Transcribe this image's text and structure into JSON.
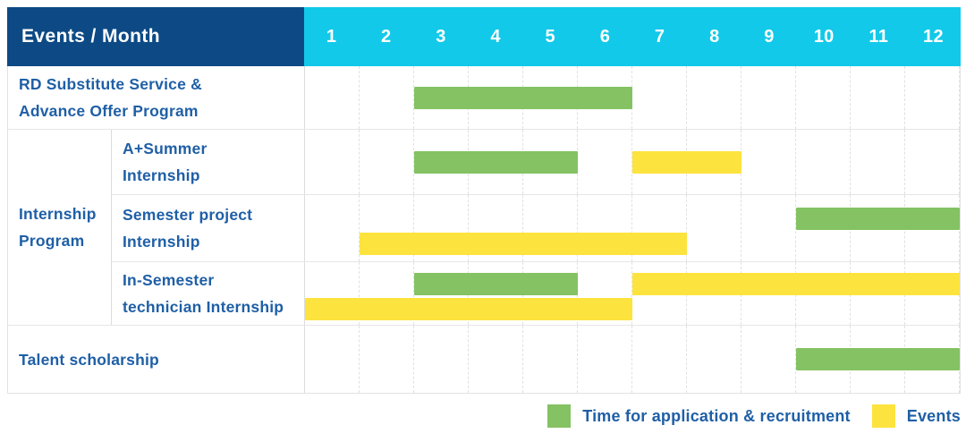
{
  "header": {
    "label": "Events / Month",
    "months": [
      "1",
      "2",
      "3",
      "4",
      "5",
      "6",
      "7",
      "8",
      "9",
      "10",
      "11",
      "12"
    ]
  },
  "legend": {
    "items": [
      {
        "label": "Time for application & recruitment",
        "color": "#84C263"
      },
      {
        "label": "Events",
        "color": "#FDE33E"
      }
    ]
  },
  "colors": {
    "header_bg": "#0D4A85",
    "months_bg": "#12C9E9",
    "header_text": "#FFFFFF",
    "label_text": "#1F5FA6",
    "green": "#84C263",
    "yellow": "#FDE33E"
  },
  "chart_data": {
    "type": "table",
    "subtype": "gantt-timeline",
    "title": "Events / Month",
    "x_axis": {
      "label": "Month",
      "ticks": [
        1,
        2,
        3,
        4,
        5,
        6,
        7,
        8,
        9,
        10,
        11,
        12
      ]
    },
    "legend_position": "bottom-right",
    "legend": [
      {
        "label": "Time for application & recruitment",
        "color": "#84C263"
      },
      {
        "label": "Events",
        "color": "#FDE33E"
      }
    ],
    "rows": [
      {
        "name": "rd-substitute-service",
        "label_lines": [
          "RD Substitute Service &",
          "Advance Offer Program"
        ],
        "bars": [
          {
            "series": "Time for application & recruitment",
            "color": "green",
            "start_month": 3,
            "end_month": 6,
            "lane": "center"
          }
        ]
      },
      {
        "name": "internship-program",
        "group_label_lines": [
          "Internship",
          "Program"
        ],
        "children": [
          {
            "name": "a-plus-summer-internship",
            "label_lines": [
              "A+Summer",
              "Internship"
            ],
            "bars": [
              {
                "series": "Time for application & recruitment",
                "color": "green",
                "start_month": 3,
                "end_month": 5,
                "lane": "center"
              },
              {
                "series": "Events",
                "color": "yellow",
                "start_month": 7,
                "end_month": 8,
                "lane": "center"
              }
            ]
          },
          {
            "name": "semester-project-internship",
            "label_lines": [
              "Semester project",
              "Internship"
            ],
            "bars": [
              {
                "series": "Time for application & recruitment",
                "color": "green",
                "start_month": 10,
                "end_month": 12,
                "lane": "top"
              },
              {
                "series": "Events",
                "color": "yellow",
                "start_month": 2,
                "end_month": 7,
                "lane": "bottom"
              }
            ]
          },
          {
            "name": "in-semester-technician-internship",
            "label_lines": [
              "In-Semester",
              "technician Internship"
            ],
            "bars": [
              {
                "series": "Time for application & recruitment",
                "color": "green",
                "start_month": 3,
                "end_month": 5,
                "lane": "top"
              },
              {
                "series": "Events",
                "color": "yellow",
                "start_month": 7,
                "end_month": 12,
                "lane": "top"
              },
              {
                "series": "Events",
                "color": "yellow",
                "start_month": 1,
                "end_month": 6,
                "lane": "bottom"
              }
            ]
          }
        ]
      },
      {
        "name": "talent-scholarship",
        "label_lines": [
          "Talent scholarship"
        ],
        "bars": [
          {
            "series": "Time for application & recruitment",
            "color": "green",
            "start_month": 10,
            "end_month": 12,
            "lane": "center"
          }
        ]
      }
    ]
  }
}
